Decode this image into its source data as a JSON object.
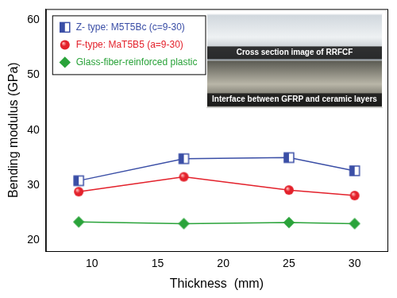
{
  "chart_data": {
    "type": "line",
    "xlabel": "Thickness  (mm)",
    "ylabel": "Bending modulus (GPa)",
    "x": [
      9,
      17,
      25,
      30
    ],
    "xlim": [
      6.5,
      32.5
    ],
    "xticks": [
      10,
      15,
      20,
      25,
      30
    ],
    "ylim": [
      18,
      62
    ],
    "yticks": [
      20,
      30,
      40,
      50,
      60
    ],
    "grid": false,
    "legend": "upper left",
    "series": [
      {
        "name": "Z- type: M5T5Bc (c=9-30)",
        "color": "#3a4ea6",
        "marker": "half-filled square",
        "line_style": "solid",
        "values": [
          30.8,
          34.8,
          35.0,
          32.6
        ]
      },
      {
        "name": "F-type: MaT5B5 (a=9-30)",
        "color": "#e3212b",
        "marker": "circle",
        "line_style": "solid",
        "values": [
          28.8,
          31.5,
          29.1,
          28.1
        ]
      },
      {
        "name": "Glass-fiber-reinforced plastic",
        "color": "#2aa33a",
        "marker": "diamond",
        "line_style": "solid",
        "values": [
          23.3,
          23.0,
          23.2,
          23.0
        ]
      }
    ],
    "annotations": [
      "Cross section image of RRFCF",
      "Interface between GFRP and ceramic layers"
    ]
  }
}
